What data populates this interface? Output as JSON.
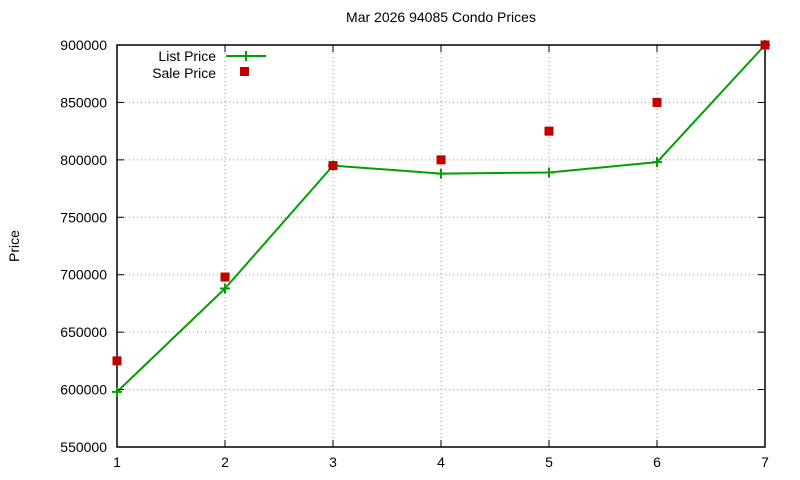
{
  "chart_data": {
    "type": "line",
    "title": "Mar 2026 94085 Condo Prices",
    "xlabel": "",
    "ylabel": "Price",
    "x": [
      1,
      2,
      3,
      4,
      5,
      6,
      7
    ],
    "xticks": [
      1,
      2,
      3,
      4,
      5,
      6,
      7
    ],
    "yticks": [
      550000,
      600000,
      650000,
      700000,
      750000,
      800000,
      850000,
      900000
    ],
    "xlim": [
      1,
      7
    ],
    "ylim": [
      550000,
      900000
    ],
    "grid": true,
    "legend_position": "top-left-inside",
    "background_color": "#ffffff",
    "grid_color": "#9a9a9a",
    "axis_color": "#000000",
    "series": [
      {
        "name": "List Price",
        "type": "line",
        "marker": "plus",
        "color": "#00a000",
        "values": [
          598000,
          688000,
          795000,
          788000,
          789000,
          798000,
          900000
        ]
      },
      {
        "name": "Sale Price",
        "type": "points",
        "marker": "square",
        "color": "#c00000",
        "values": [
          625000,
          698000,
          795000,
          800000,
          825000,
          850000,
          900000
        ]
      }
    ]
  }
}
